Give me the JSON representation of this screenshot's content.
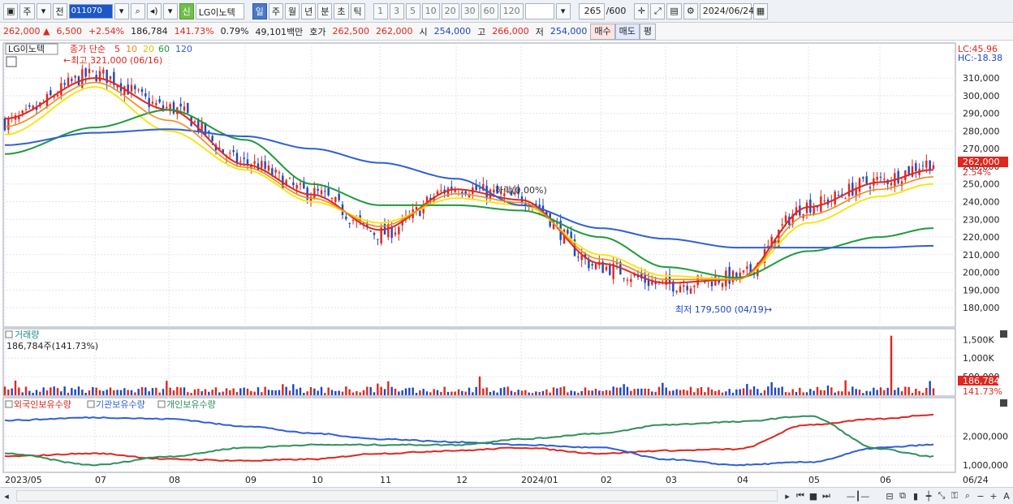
{
  "toolbar": {
    "chart_type_label": "주",
    "prev_label": "전",
    "code_value": "011070",
    "market_badge": "신",
    "stock_name": "LG이노텍",
    "period_buttons": [
      "일",
      "주",
      "월",
      "년",
      "분",
      "초",
      "틱"
    ],
    "active_period": "일",
    "interval_buttons": [
      "1",
      "3",
      "5",
      "10",
      "20",
      "30",
      "60",
      "120"
    ],
    "count_value": "265",
    "count_total": "/600",
    "date_value": "2024/06/24"
  },
  "quote": {
    "price": "262,000",
    "change": "6,500",
    "change_pct": "+2.54%",
    "volume": "186,784",
    "volume_pct": "141.73%",
    "turnover_pct": "0.79%",
    "amount": "49,101백만",
    "ask_label": "호가",
    "ask1": "262,500",
    "ask2": "262,000",
    "open_label": "시",
    "open": "254,000",
    "high_label": "고",
    "high": "266,000",
    "low_label": "저",
    "low": "254,000",
    "sell_label": "매수",
    "buy_label": "매도",
    "eval_label": "평"
  },
  "price_panel": {
    "stock_tag": "LG이노텍",
    "legend_prefix": "종가 단순",
    "legend_periods": [
      "5",
      "10",
      "20",
      "60",
      "120"
    ],
    "high_note": "최고 321,000 (06/16)",
    "low_note": "최저 179,500 (04/19)",
    "mid_note": "하락(0.00%)",
    "lc_label": "LC:45.96",
    "hc_label": "HC:-18.38",
    "price_tag": "262,000",
    "pct_tag": "2.54%",
    "y_ticks": [
      "310,000",
      "300,000",
      "290,000",
      "280,000",
      "270,000",
      "260,000",
      "250,000",
      "240,000",
      "230,000",
      "220,000",
      "210,000",
      "200,000",
      "190,000",
      "180,000"
    ]
  },
  "volume_panel": {
    "title": "거래량",
    "value_text": "186,784주(141.73%)",
    "y_ticks": [
      "1,500K",
      "1,000K",
      "500,000"
    ],
    "tag_value": "186,784",
    "tag_pct": "141.73%"
  },
  "holding_panel": {
    "legend": [
      "외국인보유수량",
      "기관보유수량",
      "개인보유수량"
    ],
    "y_ticks": [
      "2,000,000",
      "1,000,000"
    ]
  },
  "x_axis": {
    "labels": [
      "2023/05",
      "07",
      "08",
      "09",
      "10",
      "11",
      "12",
      "2024/01",
      "02",
      "03",
      "04",
      "05",
      "06"
    ],
    "end_label": "06/24"
  },
  "colors": {
    "up": "#e0261d",
    "down": "#1d46c0",
    "ma5": "#e0261d",
    "ma10": "#f08a1c",
    "ma20": "#f5e616",
    "ma60": "#1f9a3a",
    "ma120": "#2f5fd6",
    "foreign": "#e0261d",
    "institution": "#2f5fd6",
    "individual": "#2f8f5b"
  },
  "chart_data": {
    "type": "line",
    "title": "LG이노텍",
    "x": [
      "2023/05",
      "07",
      "08",
      "09",
      "10",
      "11",
      "12",
      "2024/01",
      "02",
      "03",
      "04",
      "05",
      "06",
      "06/24"
    ],
    "series": [
      {
        "name": "종가",
        "values": [
          285000,
          312000,
          293000,
          262000,
          245000,
          222000,
          248000,
          242000,
          203000,
          193000,
          197000,
          238000,
          252000,
          262000
        ]
      },
      {
        "name": "5",
        "values": [
          287000,
          310000,
          292000,
          261000,
          244000,
          224000,
          247000,
          241000,
          205000,
          194000,
          196000,
          237000,
          251000,
          258000
        ]
      },
      {
        "name": "20",
        "values": [
          278000,
          305000,
          280000,
          258000,
          240000,
          228000,
          242000,
          238000,
          210000,
          198000,
          196000,
          228000,
          243000,
          250000
        ]
      },
      {
        "name": "60",
        "values": [
          267000,
          282000,
          292000,
          275000,
          250000,
          238000,
          238000,
          235000,
          220000,
          203000,
          197000,
          212000,
          220000,
          225000
        ]
      },
      {
        "name": "120",
        "values": [
          272000,
          279000,
          281000,
          277000,
          270000,
          262000,
          253000,
          238000,
          225000,
          219000,
          214000,
          214000,
          214000,
          215000
        ]
      }
    ],
    "volume_series": {
      "name": "거래량",
      "peak": 1600000,
      "last": 186784
    },
    "holding_series": [
      {
        "name": "외국인보유수량",
        "trend": [
          1300000,
          1400000,
          1200000,
          1150000,
          1200000,
          1400000,
          1500000,
          1600000,
          1400000,
          1500000,
          1550000,
          2400000,
          2600000,
          2750000
        ]
      },
      {
        "name": "기관보유수량",
        "trend": [
          2550000,
          2650000,
          2600000,
          2350000,
          2100000,
          1900000,
          1800000,
          1700000,
          1600000,
          1200000,
          1000000,
          1100000,
          1600000,
          1700000
        ]
      },
      {
        "name": "개인보유수량",
        "trend": [
          1400000,
          1000000,
          1300000,
          1600000,
          1700000,
          1700000,
          1700000,
          1900000,
          2100000,
          2400000,
          2500000,
          2700000,
          1550000,
          1300000
        ]
      }
    ],
    "ylim": [
      175000,
      322000
    ],
    "grid": true,
    "legend": "top-left"
  }
}
